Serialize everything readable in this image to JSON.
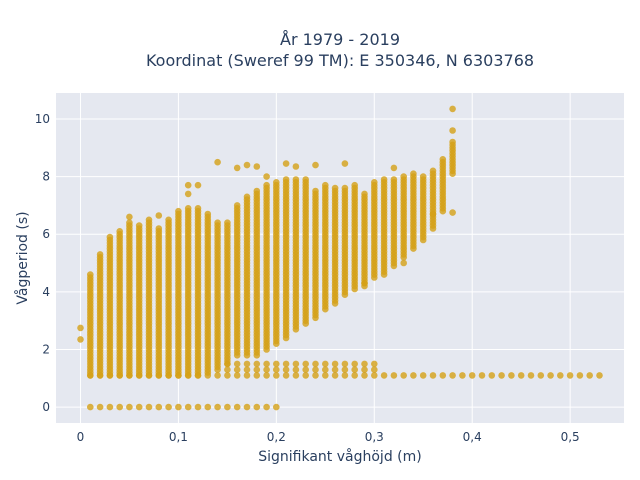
{
  "chart_data": {
    "type": "scatter",
    "title_line1": "År 1979 - 2019",
    "title_line2": "Koordinat (Sweref 99 TM): E 350346, N 6303768",
    "xlabel": "Signifikant våghöjd (m)",
    "ylabel": "Vågperiod (s)",
    "xlim": [
      -0.025,
      0.555
    ],
    "ylim": [
      -0.55,
      10.9
    ],
    "x_ticks": [
      0,
      0.1,
      0.2,
      0.3,
      0.4,
      0.5
    ],
    "x_tick_labels": [
      "0",
      "0,1",
      "0,2",
      "0,3",
      "0,4",
      "0,5"
    ],
    "y_ticks": [
      0,
      2,
      4,
      6,
      8,
      10
    ],
    "y_tick_labels": [
      "0",
      "2",
      "4",
      "6",
      "8",
      "10"
    ],
    "grid": true,
    "colors": {
      "marker": "#d4a017",
      "plot_bg": "#e5e8f0",
      "grid": "#ffffff",
      "text": "#2a3f5f"
    },
    "columns": [
      {
        "x": 0.01,
        "ymin": 1.1,
        "ymax": 4.6
      },
      {
        "x": 0.02,
        "ymin": 1.1,
        "ymax": 5.3
      },
      {
        "x": 0.03,
        "ymin": 1.1,
        "ymax": 5.9
      },
      {
        "x": 0.04,
        "ymin": 1.1,
        "ymax": 6.1
      },
      {
        "x": 0.05,
        "ymin": 1.1,
        "ymax": 6.4
      },
      {
        "x": 0.06,
        "ymin": 1.1,
        "ymax": 6.3
      },
      {
        "x": 0.07,
        "ymin": 1.1,
        "ymax": 6.5
      },
      {
        "x": 0.08,
        "ymin": 1.1,
        "ymax": 6.2
      },
      {
        "x": 0.09,
        "ymin": 1.1,
        "ymax": 6.5
      },
      {
        "x": 0.1,
        "ymin": 1.1,
        "ymax": 6.8
      },
      {
        "x": 0.11,
        "ymin": 1.1,
        "ymax": 6.9
      },
      {
        "x": 0.12,
        "ymin": 1.1,
        "ymax": 6.9
      },
      {
        "x": 0.13,
        "ymin": 1.2,
        "ymax": 6.7
      },
      {
        "x": 0.14,
        "ymin": 1.3,
        "ymax": 6.4
      },
      {
        "x": 0.15,
        "ymin": 1.5,
        "ymax": 6.4
      },
      {
        "x": 0.16,
        "ymin": 1.8,
        "ymax": 7.0
      },
      {
        "x": 0.17,
        "ymin": 1.8,
        "ymax": 7.3
      },
      {
        "x": 0.18,
        "ymin": 1.8,
        "ymax": 7.5
      },
      {
        "x": 0.19,
        "ymin": 2.0,
        "ymax": 7.7
      },
      {
        "x": 0.2,
        "ymin": 2.2,
        "ymax": 7.8
      },
      {
        "x": 0.21,
        "ymin": 2.4,
        "ymax": 7.9
      },
      {
        "x": 0.22,
        "ymin": 2.7,
        "ymax": 7.9
      },
      {
        "x": 0.23,
        "ymin": 2.9,
        "ymax": 7.9
      },
      {
        "x": 0.24,
        "ymin": 3.1,
        "ymax": 7.5
      },
      {
        "x": 0.25,
        "ymin": 3.4,
        "ymax": 7.7
      },
      {
        "x": 0.26,
        "ymin": 3.6,
        "ymax": 7.6
      },
      {
        "x": 0.27,
        "ymin": 3.9,
        "ymax": 7.6
      },
      {
        "x": 0.28,
        "ymin": 4.1,
        "ymax": 7.7
      },
      {
        "x": 0.29,
        "ymin": 4.2,
        "ymax": 7.4
      },
      {
        "x": 0.3,
        "ymin": 4.5,
        "ymax": 7.8
      },
      {
        "x": 0.31,
        "ymin": 4.6,
        "ymax": 7.9
      },
      {
        "x": 0.32,
        "ymin": 4.9,
        "ymax": 7.9
      },
      {
        "x": 0.33,
        "ymin": 5.2,
        "ymax": 8.0
      },
      {
        "x": 0.34,
        "ymin": 5.5,
        "ymax": 8.1
      },
      {
        "x": 0.35,
        "ymin": 5.8,
        "ymax": 8.0
      },
      {
        "x": 0.36,
        "ymin": 6.2,
        "ymax": 8.2
      },
      {
        "x": 0.37,
        "ymin": 6.8,
        "ymax": 8.6
      },
      {
        "x": 0.38,
        "ymin": 8.1,
        "ymax": 9.2
      }
    ],
    "outliers": [
      {
        "x": 0.0,
        "y": 2.75
      },
      {
        "x": 0.0,
        "y": 2.35
      },
      {
        "x": 0.05,
        "y": 6.6
      },
      {
        "x": 0.08,
        "y": 6.65
      },
      {
        "x": 0.11,
        "y": 7.4
      },
      {
        "x": 0.11,
        "y": 7.7
      },
      {
        "x": 0.12,
        "y": 7.7
      },
      {
        "x": 0.14,
        "y": 8.5
      },
      {
        "x": 0.16,
        "y": 8.3
      },
      {
        "x": 0.17,
        "y": 8.4
      },
      {
        "x": 0.18,
        "y": 8.35
      },
      {
        "x": 0.19,
        "y": 8.0
      },
      {
        "x": 0.21,
        "y": 8.45
      },
      {
        "x": 0.22,
        "y": 8.35
      },
      {
        "x": 0.24,
        "y": 8.4
      },
      {
        "x": 0.27,
        "y": 8.45
      },
      {
        "x": 0.29,
        "y": 4.3
      },
      {
        "x": 0.32,
        "y": 8.3
      },
      {
        "x": 0.33,
        "y": 5.0
      },
      {
        "x": 0.36,
        "y": 6.7
      },
      {
        "x": 0.38,
        "y": 6.75
      },
      {
        "x": 0.38,
        "y": 9.6
      },
      {
        "x": 0.38,
        "y": 10.35
      }
    ],
    "low_band": {
      "x_start": 0.01,
      "x_end": 0.53,
      "step": 0.01,
      "y": 1.1
    },
    "zero_band": {
      "x_start": 0.01,
      "x_end": 0.2,
      "step": 0.01,
      "y": 0
    }
  }
}
